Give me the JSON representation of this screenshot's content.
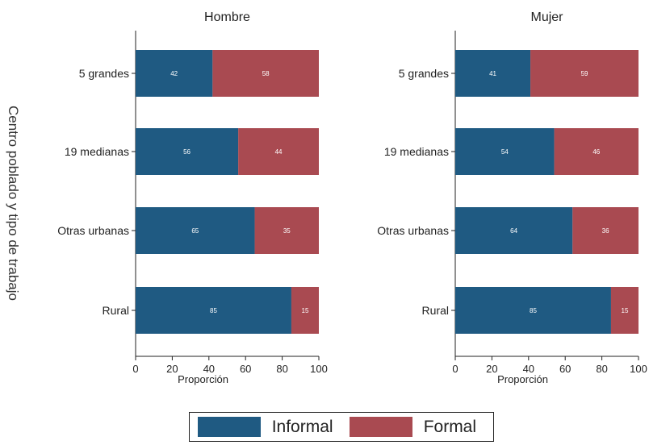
{
  "chart_data": {
    "type": "bar",
    "orientation": "horizontal",
    "stacked": true,
    "y_axis_title": "Centro poblado y tipo de trabajo",
    "x_axis_title": "Proporción",
    "xlim": [
      0,
      100
    ],
    "xticks": [
      "0",
      "20",
      "40",
      "60",
      "80",
      "100"
    ],
    "categories": [
      "5 grandes",
      "19 medianas",
      "Otras urbanas",
      "Rural"
    ],
    "legend": {
      "position": "bottom",
      "items": [
        "Informal",
        "Formal"
      ]
    },
    "colors": {
      "Informal": "#1f5a82",
      "Formal": "#a94a51"
    },
    "panels": [
      {
        "title": "Hombre",
        "series": [
          {
            "name": "Informal",
            "values": [
              42,
              56,
              65,
              85
            ]
          },
          {
            "name": "Formal",
            "values": [
              58,
              44,
              35,
              15
            ]
          }
        ]
      },
      {
        "title": "Mujer",
        "series": [
          {
            "name": "Informal",
            "values": [
              41,
              54,
              64,
              85
            ]
          },
          {
            "name": "Formal",
            "values": [
              59,
              46,
              36,
              15
            ]
          }
        ]
      }
    ]
  }
}
